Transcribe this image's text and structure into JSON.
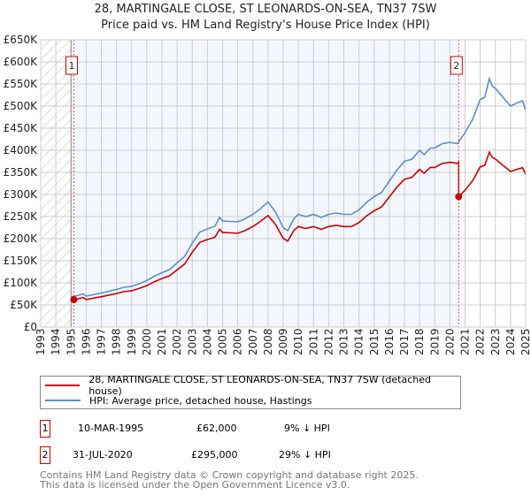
{
  "chart_data": {
    "type": "line",
    "title": "28, MARTINGALE CLOSE, ST LEONARDS-ON-SEA, TN37 7SW",
    "subtitle": "Price paid vs. HM Land Registry's House Price Index (HPI)",
    "xlim": [
      1993,
      2025
    ],
    "ylim": [
      0,
      650000
    ],
    "y_ticks": [
      0,
      50000,
      100000,
      150000,
      200000,
      250000,
      300000,
      350000,
      400000,
      450000,
      500000,
      550000,
      600000,
      650000
    ],
    "y_tick_labels": [
      "£0",
      "£50K",
      "£100K",
      "£150K",
      "£200K",
      "£250K",
      "£300K",
      "£350K",
      "£400K",
      "£450K",
      "£500K",
      "£550K",
      "£600K",
      "£650K"
    ],
    "x_tick_labels": [
      "1993",
      "1994",
      "1995",
      "1996",
      "1997",
      "1998",
      "1999",
      "2000",
      "2001",
      "2002",
      "2003",
      "2004",
      "2005",
      "2006",
      "2007",
      "2008",
      "2009",
      "2010",
      "2011",
      "2012",
      "2013",
      "2014",
      "2015",
      "2016",
      "2017",
      "2018",
      "2019",
      "2020",
      "2021",
      "2022",
      "2023",
      "2024",
      "2025"
    ],
    "grid": true,
    "series": [
      {
        "name": "HPI: Average price, detached house, Hastings",
        "color": "#5b8fd0",
        "x": [
          1995.0,
          1995.5,
          1995.8,
          1996,
          1997,
          1998,
          1998.5,
          1999,
          1999.5,
          2000,
          2000.5,
          2001,
          2001.5,
          2002,
          2002.5,
          2003,
          2003.5,
          2004,
          2004.5,
          2004.8,
          2005,
          2006,
          2006.5,
          2007,
          2007.5,
          2008,
          2008.5,
          2009,
          2009.3,
          2009.7,
          2010,
          2010.5,
          2011,
          2011.5,
          2012,
          2012.5,
          2013,
          2013.5,
          2014,
          2014.5,
          2015,
          2015.5,
          2016,
          2016.5,
          2017,
          2017.5,
          2018,
          2018.3,
          2018.7,
          2019,
          2019.5,
          2020,
          2020.5,
          2021,
          2021.5,
          2022,
          2022.3,
          2022.6,
          2022.8,
          2023,
          2023.5,
          2024,
          2024.5,
          2024.8,
          2025
        ],
        "y": [
          68000,
          72000,
          75000,
          70000,
          77000,
          85000,
          90000,
          92000,
          98000,
          105000,
          115000,
          123000,
          130000,
          145000,
          160000,
          190000,
          215000,
          222000,
          228000,
          248000,
          240000,
          238000,
          245000,
          255000,
          268000,
          283000,
          260000,
          225000,
          218000,
          245000,
          255000,
          250000,
          255000,
          248000,
          255000,
          258000,
          255000,
          255000,
          265000,
          282000,
          295000,
          305000,
          330000,
          355000,
          375000,
          380000,
          400000,
          390000,
          405000,
          405000,
          415000,
          418000,
          415000,
          440000,
          470000,
          515000,
          520000,
          562000,
          545000,
          540000,
          520000,
          500000,
          508000,
          512000,
          490000
        ]
      },
      {
        "name": "28, MARTINGALE CLOSE, ST LEONARDS-ON-SEA, TN37 7SW (detached house)",
        "color": "#cc0000",
        "derived_from": "HPI indexed from each sale"
      }
    ],
    "sales": [
      {
        "id": "1",
        "x": 1995.19,
        "date": "10-MAR-1995",
        "price": 62000,
        "price_label": "£62,000",
        "hpi_diff": "9% ↓ HPI"
      },
      {
        "id": "2",
        "x": 2020.58,
        "date": "31-JUL-2020",
        "price": 295000,
        "price_label": "£295,000",
        "hpi_diff": "29% ↓ HPI"
      }
    ],
    "legend_placement": "below"
  },
  "footer": {
    "line1": "Contains HM Land Registry data © Crown copyright and database right 2025.",
    "line2": "This data is licensed under the Open Government Licence v3.0."
  }
}
